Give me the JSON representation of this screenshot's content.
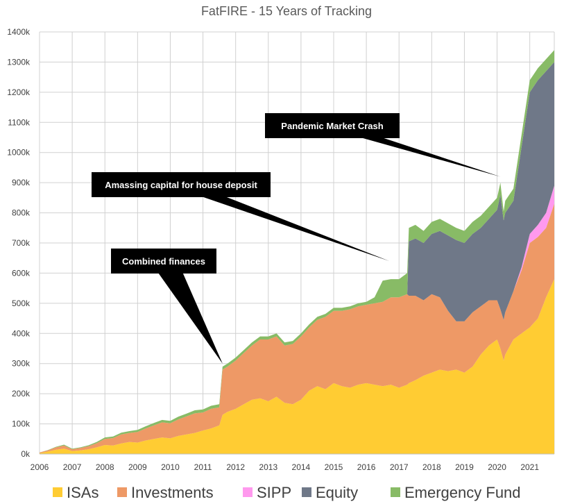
{
  "chart_data": {
    "type": "area",
    "stacked": true,
    "title": "FatFIRE - 15 Years of Tracking",
    "xlabel": "",
    "ylabel": "",
    "xlim": [
      2006,
      2021.75
    ],
    "ylim": [
      0,
      1400
    ],
    "x_ticks": [
      2006,
      2007,
      2008,
      2009,
      2010,
      2011,
      2012,
      2013,
      2014,
      2015,
      2016,
      2017,
      2018,
      2019,
      2020,
      2021
    ],
    "x_tick_labels": [
      "2006",
      "2007",
      "2008",
      "2009",
      "2010",
      "2011",
      "2012",
      "2013",
      "2014",
      "2015",
      "2016",
      "2017",
      "2018",
      "2019",
      "2020",
      "2021"
    ],
    "y_ticks": [
      0,
      100,
      200,
      300,
      400,
      500,
      600,
      700,
      800,
      900,
      1000,
      1100,
      1200,
      1300,
      1400
    ],
    "y_tick_labels": [
      "0k",
      "100k",
      "200k",
      "300k",
      "400k",
      "500k",
      "600k",
      "700k",
      "800k",
      "900k",
      "1000k",
      "1100k",
      "1200k",
      "1300k",
      "1400k"
    ],
    "grid": true,
    "legend_position": "bottom",
    "x": [
      2006.0,
      2006.25,
      2006.5,
      2006.75,
      2007.0,
      2007.25,
      2007.5,
      2007.75,
      2008.0,
      2008.25,
      2008.5,
      2008.75,
      2009.0,
      2009.25,
      2009.5,
      2009.75,
      2010.0,
      2010.25,
      2010.5,
      2010.75,
      2011.0,
      2011.25,
      2011.5,
      2011.6,
      2011.75,
      2012.0,
      2012.25,
      2012.5,
      2012.75,
      2013.0,
      2013.25,
      2013.5,
      2013.75,
      2014.0,
      2014.25,
      2014.5,
      2014.75,
      2015.0,
      2015.25,
      2015.5,
      2015.75,
      2016.0,
      2016.25,
      2016.5,
      2016.75,
      2017.0,
      2017.25,
      2017.3,
      2017.5,
      2017.75,
      2018.0,
      2018.25,
      2018.5,
      2018.75,
      2019.0,
      2019.25,
      2019.5,
      2019.75,
      2020.0,
      2020.1,
      2020.2,
      2020.25,
      2020.5,
      2020.75,
      2021.0,
      2021.25,
      2021.5,
      2021.75
    ],
    "series": [
      {
        "name": "ISAs",
        "color": "#ffcc33",
        "values": [
          3,
          8,
          14,
          18,
          10,
          12,
          16,
          22,
          30,
          28,
          35,
          40,
          38,
          45,
          50,
          55,
          52,
          60,
          65,
          70,
          78,
          85,
          95,
          130,
          140,
          150,
          165,
          180,
          185,
          175,
          190,
          170,
          165,
          180,
          210,
          225,
          215,
          235,
          225,
          220,
          230,
          235,
          230,
          225,
          230,
          220,
          230,
          235,
          245,
          260,
          270,
          280,
          275,
          280,
          270,
          290,
          330,
          360,
          380,
          350,
          310,
          330,
          380,
          400,
          420,
          450,
          520,
          580
        ]
      },
      {
        "name": "Investments",
        "color": "#ee9966",
        "values": [
          2,
          4,
          8,
          10,
          6,
          8,
          10,
          14,
          20,
          25,
          30,
          30,
          35,
          40,
          45,
          50,
          50,
          55,
          60,
          65,
          60,
          65,
          60,
          150,
          150,
          160,
          170,
          180,
          195,
          205,
          200,
          190,
          200,
          210,
          210,
          220,
          240,
          240,
          250,
          260,
          260,
          260,
          270,
          280,
          290,
          300,
          300,
          290,
          280,
          250,
          260,
          240,
          200,
          160,
          170,
          180,
          160,
          150,
          130,
          130,
          135,
          140,
          160,
          210,
          280,
          270,
          230,
          250
        ]
      },
      {
        "name": "SIPP",
        "color": "#ff99ee",
        "values": [
          0,
          0,
          0,
          0,
          0,
          0,
          0,
          0,
          0,
          0,
          0,
          0,
          0,
          0,
          0,
          0,
          0,
          0,
          0,
          0,
          0,
          0,
          0,
          0,
          0,
          0,
          0,
          0,
          0,
          0,
          0,
          0,
          0,
          0,
          0,
          0,
          0,
          0,
          0,
          0,
          0,
          0,
          0,
          0,
          0,
          0,
          0,
          0,
          0,
          0,
          0,
          0,
          0,
          0,
          0,
          0,
          0,
          0,
          0,
          0,
          0,
          0,
          0,
          10,
          30,
          40,
          50,
          60
        ]
      },
      {
        "name": "Equity",
        "color": "#6f7888",
        "values": [
          0,
          0,
          0,
          0,
          0,
          0,
          0,
          0,
          0,
          0,
          0,
          0,
          0,
          0,
          0,
          0,
          0,
          0,
          0,
          0,
          0,
          0,
          0,
          0,
          0,
          0,
          0,
          0,
          0,
          0,
          0,
          0,
          0,
          0,
          0,
          0,
          0,
          0,
          0,
          0,
          0,
          0,
          0,
          0,
          0,
          0,
          0,
          180,
          190,
          190,
          200,
          220,
          250,
          270,
          260,
          260,
          260,
          270,
          300,
          380,
          330,
          330,
          300,
          400,
          470,
          480,
          470,
          410
        ]
      },
      {
        "name": "Emergency Fund",
        "color": "#88bb66",
        "values": [
          0,
          1,
          2,
          3,
          2,
          2,
          3,
          4,
          5,
          5,
          6,
          6,
          7,
          7,
          8,
          8,
          8,
          9,
          9,
          10,
          10,
          10,
          10,
          10,
          10,
          10,
          10,
          10,
          10,
          10,
          10,
          10,
          10,
          10,
          10,
          10,
          10,
          10,
          10,
          10,
          10,
          10,
          20,
          70,
          60,
          60,
          70,
          45,
          45,
          40,
          40,
          40,
          40,
          40,
          40,
          40,
          40,
          40,
          40,
          40,
          30,
          40,
          40,
          40,
          40,
          40,
          40,
          40
        ]
      }
    ],
    "annotations": [
      {
        "text": "Combined finances",
        "target_x": 2011.6,
        "target_y": 300
      },
      {
        "text": "Amassing capital for house deposit",
        "target_x": 2016.7,
        "target_y": 640
      },
      {
        "text": "Pandemic Market Crash",
        "target_x": 2020.1,
        "target_y": 920
      }
    ]
  }
}
